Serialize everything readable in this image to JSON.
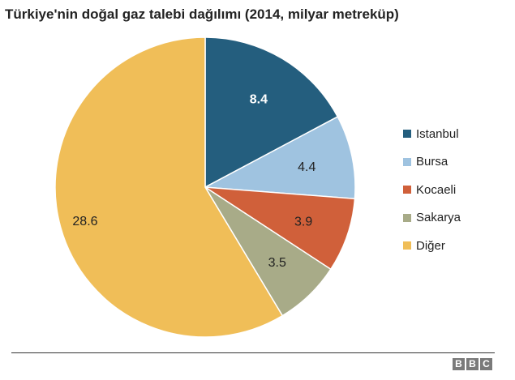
{
  "chart_data": {
    "type": "pie",
    "title": "Türkiye'nin doğal gaz talebi dağılımı (2014, milyar metreküp)",
    "slices": [
      {
        "label": "Istanbul",
        "value": 8.4,
        "value_label": "8.4",
        "color": "#245e7e",
        "label_color": "#ffffff"
      },
      {
        "label": "Bursa",
        "value": 4.4,
        "value_label": "4.4",
        "color": "#9fc3e0",
        "label_color": "#222222"
      },
      {
        "label": "Kocaeli",
        "value": 3.9,
        "value_label": "3.9",
        "color": "#d0603a",
        "label_color": "#222222"
      },
      {
        "label": "Sakarya",
        "value": 3.5,
        "value_label": "3.5",
        "color": "#a8ab88",
        "label_color": "#222222"
      },
      {
        "label": "Diğer",
        "value": 28.6,
        "value_label": "28.6",
        "color": "#f0be58",
        "label_color": "#222222"
      }
    ],
    "start": "12 o'clock",
    "direction": "clockwise",
    "legend": "right"
  },
  "footer": {
    "logo_letters": [
      "B",
      "B",
      "C"
    ]
  }
}
